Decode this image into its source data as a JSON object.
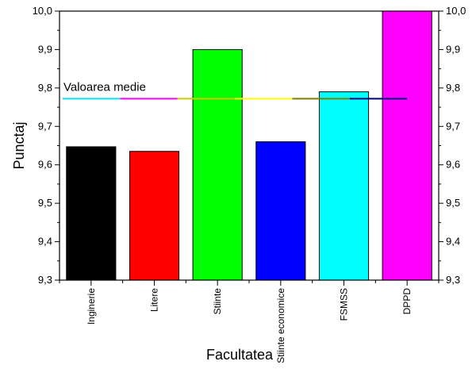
{
  "chart_data": {
    "type": "bar",
    "title": "",
    "xlabel": "Facultatea",
    "ylabel": "Punctaj",
    "ylim": [
      9.3,
      10.0
    ],
    "yticks": [
      "9,3",
      "9,4",
      "9,5",
      "9,6",
      "9,7",
      "9,8",
      "9,9",
      "10,0"
    ],
    "categories": [
      "Inginerie",
      "Litere",
      "Stiinte",
      "Stiinte economice",
      "FSMSS",
      "DPPD"
    ],
    "values": [
      9.647,
      9.635,
      9.9,
      9.66,
      9.79,
      10.0
    ],
    "colors": [
      "#000000",
      "#ff0000",
      "#00ff00",
      "#0000ff",
      "#00ffff",
      "#ff00ff"
    ],
    "mean": {
      "label": "Valoarea medie",
      "value": 9.772,
      "colors": [
        "#00e5ee",
        "#ff00ff",
        "#cccc00",
        "#ffff00",
        "#808000",
        "#000080"
      ]
    },
    "grid": false,
    "right_axis_mirror": true
  }
}
